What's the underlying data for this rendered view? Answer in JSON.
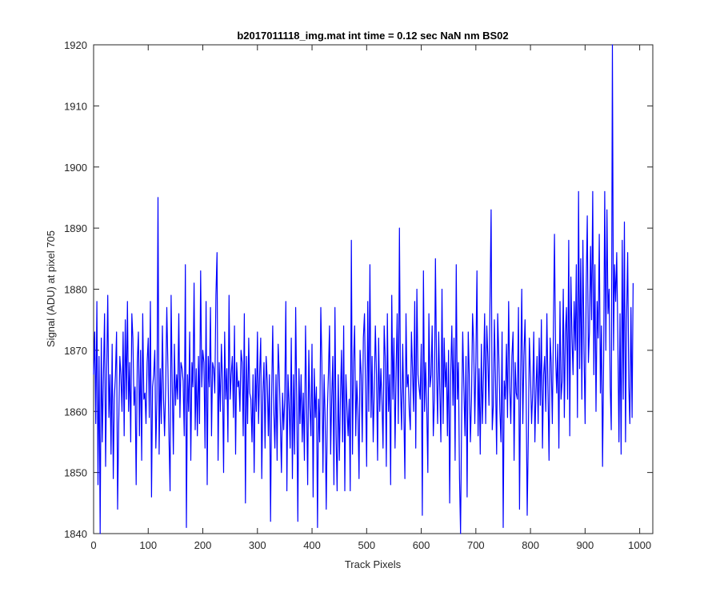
{
  "chart_data": {
    "type": "line",
    "title": "b2017011118_img.mat int time = 0.12 sec  NaN nm BS02",
    "xlabel": "Track Pixels",
    "ylabel": "Signal (ADU) at pixel 705",
    "xlim": [
      0,
      1024
    ],
    "ylim": [
      1840,
      1920
    ],
    "xticks": [
      0,
      100,
      200,
      300,
      400,
      500,
      600,
      700,
      800,
      900,
      1000
    ],
    "yticks": [
      1840,
      1850,
      1860,
      1870,
      1880,
      1890,
      1900,
      1910,
      1920
    ],
    "grid": false,
    "legend": "none",
    "line_color": "#0000ff",
    "series": [
      {
        "x_start": 0,
        "x_step": 2,
        "values": [
          1866,
          1873,
          1858,
          1878,
          1848,
          1869,
          1840,
          1872,
          1855,
          1866,
          1876,
          1851,
          1867,
          1879,
          1859,
          1866,
          1853,
          1871,
          1849,
          1862,
          1866,
          1873,
          1844,
          1858,
          1869,
          1866,
          1860,
          1873,
          1856,
          1875,
          1862,
          1878,
          1860,
          1868,
          1855,
          1876,
          1872,
          1861,
          1864,
          1848,
          1868,
          1873,
          1856,
          1870,
          1852,
          1876,
          1862,
          1863,
          1858,
          1868,
          1872,
          1859,
          1878,
          1846,
          1864,
          1866,
          1870,
          1854,
          1862,
          1895,
          1853,
          1867,
          1858,
          1874,
          1862,
          1856,
          1864,
          1877,
          1868,
          1856,
          1847,
          1879,
          1864,
          1853,
          1871,
          1861,
          1866,
          1862,
          1876,
          1859,
          1868,
          1867,
          1865,
          1856,
          1884,
          1841,
          1866,
          1860,
          1873,
          1852,
          1868,
          1864,
          1881,
          1857,
          1867,
          1856,
          1869,
          1858,
          1883,
          1864,
          1870,
          1868,
          1854,
          1878,
          1848,
          1869,
          1864,
          1877,
          1856,
          1868,
          1867,
          1863,
          1879,
          1886,
          1852,
          1868,
          1860,
          1871,
          1865,
          1850,
          1873,
          1862,
          1867,
          1855,
          1879,
          1862,
          1866,
          1869,
          1859,
          1874,
          1853,
          1868,
          1864,
          1865,
          1860,
          1870,
          1868,
          1856,
          1876,
          1845,
          1869,
          1858,
          1872,
          1863,
          1862,
          1855,
          1866,
          1850,
          1867,
          1860,
          1873,
          1858,
          1866,
          1872,
          1849,
          1863,
          1868,
          1854,
          1869,
          1865,
          1856,
          1866,
          1842,
          1862,
          1874,
          1860,
          1854,
          1866,
          1852,
          1871,
          1866,
          1858,
          1850,
          1863,
          1857,
          1862,
          1878,
          1847,
          1866,
          1861,
          1854,
          1872,
          1849,
          1866,
          1853,
          1877,
          1862,
          1842,
          1867,
          1858,
          1866,
          1855,
          1863,
          1852,
          1874,
          1862,
          1848,
          1870,
          1861,
          1856,
          1871,
          1846,
          1867,
          1859,
          1864,
          1841,
          1862,
          1855,
          1877,
          1868,
          1850,
          1866,
          1859,
          1844,
          1860,
          1866,
          1874,
          1853,
          1862,
          1869,
          1848,
          1877,
          1856,
          1847,
          1866,
          1852,
          1862,
          1870,
          1855,
          1874,
          1847,
          1866,
          1861,
          1856,
          1862,
          1847,
          1888,
          1853,
          1868,
          1874,
          1856,
          1865,
          1860,
          1849,
          1870,
          1866,
          1855,
          1872,
          1876,
          1864,
          1851,
          1878,
          1860,
          1884,
          1859,
          1869,
          1855,
          1864,
          1874,
          1866,
          1852,
          1872,
          1860,
          1867,
          1862,
          1854,
          1874,
          1869,
          1851,
          1876,
          1860,
          1866,
          1848,
          1879,
          1862,
          1872,
          1854,
          1867,
          1876,
          1858,
          1890,
          1864,
          1857,
          1871,
          1861,
          1849,
          1876,
          1864,
          1866,
          1860,
          1857,
          1873,
          1867,
          1860,
          1878,
          1854,
          1880,
          1866,
          1864,
          1862,
          1871,
          1843,
          1883,
          1860,
          1868,
          1861,
          1850,
          1876,
          1864,
          1866,
          1874,
          1856,
          1862,
          1885,
          1867,
          1858,
          1873,
          1863,
          1855,
          1880,
          1858,
          1872,
          1864,
          1868,
          1856,
          1870,
          1845,
          1866,
          1874,
          1861,
          1872,
          1852,
          1884,
          1862,
          1868,
          1849,
          1840,
          1860,
          1873,
          1864,
          1856,
          1869,
          1846,
          1873,
          1866,
          1855,
          1862,
          1876,
          1871,
          1858,
          1868,
          1883,
          1856,
          1867,
          1853,
          1871,
          1858,
          1866,
          1876,
          1858,
          1874,
          1869,
          1861,
          1879,
          1893,
          1857,
          1861,
          1875,
          1865,
          1853,
          1876,
          1869,
          1860,
          1855,
          1873,
          1841,
          1865,
          1862,
          1871,
          1859,
          1878,
          1864,
          1858,
          1869,
          1873,
          1852,
          1868,
          1863,
          1862,
          1877,
          1844,
          1866,
          1880,
          1858,
          1869,
          1875,
          1864,
          1843,
          1856,
          1872,
          1866,
          1858,
          1863,
          1873,
          1855,
          1863,
          1869,
          1858,
          1872,
          1861,
          1875,
          1854,
          1866,
          1869,
          1860,
          1876,
          1864,
          1852,
          1872,
          1868,
          1858,
          1874,
          1889,
          1869,
          1863,
          1871,
          1854,
          1878,
          1862,
          1865,
          1880,
          1859,
          1873,
          1877,
          1862,
          1888,
          1856,
          1882,
          1872,
          1866,
          1878,
          1870,
          1884,
          1859,
          1896,
          1867,
          1885,
          1862,
          1888,
          1870,
          1858,
          1880,
          1892,
          1868,
          1873,
          1887,
          1875,
          1896,
          1866,
          1884,
          1860,
          1878,
          1872,
          1889,
          1863,
          1874,
          1851,
          1869,
          1896,
          1870,
          1893,
          1876,
          1880,
          1864,
          1857,
          1920,
          1870,
          1884,
          1878,
          1886,
          1872,
          1855,
          1876,
          1853,
          1888,
          1862,
          1891,
          1855,
          1875,
          1886,
          1864,
          1858,
          1877,
          1859,
          1881
        ]
      }
    ]
  }
}
